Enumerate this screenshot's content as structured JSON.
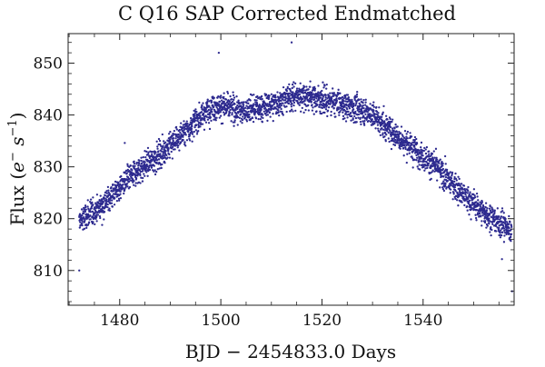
{
  "chart_data": {
    "type": "scatter",
    "title": "C Q16 SAP Corrected Endmatched",
    "xlabel": "BJD − 2454833.0 Days",
    "ylabel_main": "Flux (",
    "ylabel_e": "e",
    "ylabel_e_sup": "−",
    "ylabel_s": " s",
    "ylabel_s_sup": "−1",
    "ylabel_close": ")",
    "xlim": [
      1469.8,
      1558.0
    ],
    "ylim": [
      803.3,
      855.7
    ],
    "xticks": [
      1480,
      1500,
      1520,
      1540
    ],
    "yticks": [
      810,
      820,
      830,
      840,
      850
    ],
    "x_tick_labels": [
      "1480",
      "1500",
      "1520",
      "1540"
    ],
    "y_tick_labels": [
      "810",
      "820",
      "830",
      "840",
      "850"
    ],
    "marker_color": "#2d2a8f",
    "series": [
      {
        "name": "flux",
        "trend_x": [
          1472,
          1474,
          1476,
          1478,
          1480,
          1482,
          1484,
          1486,
          1488,
          1490,
          1492,
          1494,
          1496,
          1498,
          1500,
          1502,
          1504,
          1506,
          1508,
          1510,
          1512,
          1514,
          1516,
          1518,
          1520,
          1522,
          1524,
          1526,
          1528,
          1530,
          1532,
          1534,
          1536,
          1538,
          1540,
          1542,
          1544,
          1546,
          1548,
          1550,
          1552,
          1554,
          1556,
          1557.5
        ],
        "trend_y": [
          819.5,
          820.8,
          822.2,
          824.0,
          826.0,
          828.0,
          829.6,
          831.0,
          832.5,
          834.2,
          836.0,
          837.8,
          839.8,
          841.5,
          841.8,
          841.3,
          840.8,
          841.0,
          841.4,
          842.0,
          842.8,
          843.5,
          843.8,
          843.5,
          843.0,
          842.6,
          842.0,
          841.4,
          841.0,
          840.0,
          838.3,
          836.6,
          835.0,
          833.6,
          832.0,
          830.4,
          828.4,
          826.5,
          824.5,
          822.8,
          821.2,
          819.8,
          818.6,
          817.8
        ],
        "spread": 2.3,
        "n_points": 3100,
        "outliers": [
          [
            1472.0,
            810.0
          ],
          [
            1514.0,
            854.0
          ],
          [
            1557.6,
            806.0
          ],
          [
            1499.6,
            852.0
          ],
          [
            1481.0,
            834.6
          ],
          [
            1555.6,
            812.2
          ]
        ]
      }
    ]
  }
}
